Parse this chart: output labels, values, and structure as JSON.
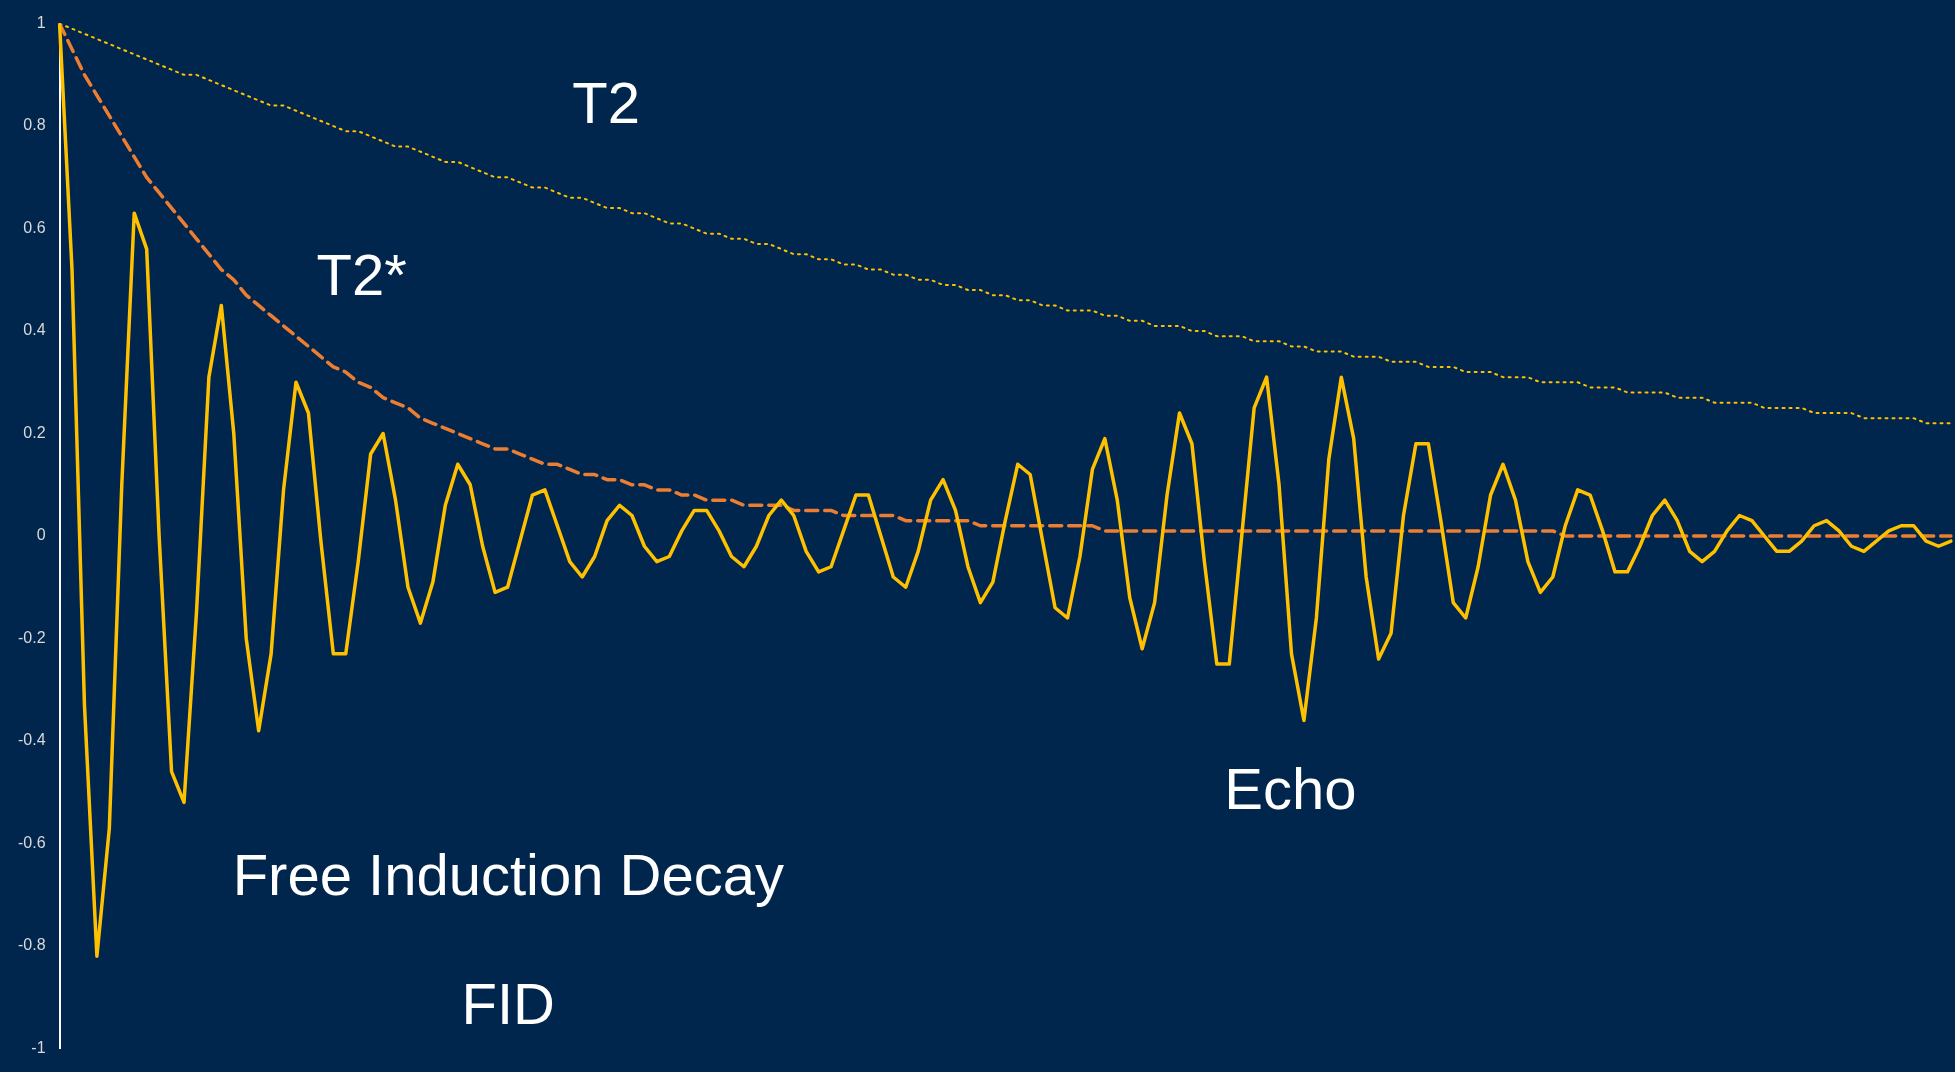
{
  "chart_data": {
    "type": "line",
    "categories": [
      null,
      null,
      null,
      null,
      null,
      null,
      null,
      null,
      null,
      null,
      null,
      null,
      null,
      null,
      null,
      null,
      null,
      null,
      null,
      null,
      null,
      null,
      null,
      null,
      null,
      null,
      null,
      null,
      null,
      null,
      null,
      null,
      null,
      null,
      null,
      null,
      null,
      null,
      null,
      null,
      null,
      null,
      null,
      null,
      null,
      null,
      null,
      null,
      null,
      null,
      null,
      null,
      null,
      null,
      null,
      null,
      null,
      null,
      null,
      null,
      null,
      null,
      null,
      null,
      null,
      null,
      null,
      null,
      null,
      null,
      null,
      null,
      null,
      null,
      null,
      null,
      null,
      null,
      null,
      null,
      null,
      null,
      null,
      null,
      null,
      null,
      null,
      null,
      null,
      null,
      null,
      null,
      null,
      null,
      null,
      null,
      null,
      null,
      null,
      null,
      null,
      null,
      null,
      null,
      null,
      null,
      null,
      null,
      null,
      null,
      null,
      null,
      null,
      null,
      null,
      null,
      null,
      null,
      null,
      null,
      null,
      null,
      null,
      null,
      null,
      null,
      null,
      null,
      null,
      null,
      null,
      null,
      null,
      null,
      null,
      null,
      null,
      null,
      null,
      null,
      null,
      null,
      null,
      null,
      null,
      null,
      null,
      null,
      null,
      null,
      null,
      null,
      null
    ],
    "ylim": [
      -1,
      1
    ],
    "yticks": [
      -1,
      -0.8,
      -0.6,
      -0.4,
      -0.2,
      0,
      0.2,
      0.4,
      0.6,
      0.8,
      1
    ],
    "grid": false,
    "legend": false,
    "marker": "none",
    "tick_labels": "y",
    "annotations": [
      "T2",
      "T2*",
      "Free Induction Decay",
      "FID",
      "Echo"
    ],
    "series": [
      {
        "color": "#ffc000",
        "line_style": "solid",
        "values": [
          1,
          0.52,
          -0.33,
          -0.82,
          -0.57,
          0.1,
          0.63,
          0.56,
          0,
          -0.46,
          -0.52,
          -0.15,
          0.31,
          0.45,
          0.2,
          -0.2,
          -0.38,
          -0.23,
          0.09,
          0.3,
          0.24,
          -0.01,
          -0.23,
          -0.23,
          -0.05,
          0.16,
          0.2,
          0.07,
          -0.1,
          -0.17,
          -0.09,
          0.06,
          0.14,
          0.1,
          -0.02,
          -0.11,
          -0.1,
          -0.01,
          0.08,
          0.09,
          0.02,
          -0.05,
          -0.08,
          -0.04,
          0.03,
          0.06,
          0.04,
          -0.02,
          -0.05,
          -0.04,
          0.01,
          0.05,
          0.05,
          0.01,
          -0.04,
          -0.06,
          -0.02,
          0.04,
          0.07,
          0.04,
          -0.03,
          -0.07,
          -0.06,
          0.01,
          0.08,
          0.08,
          0,
          -0.08,
          -0.1,
          -0.03,
          0.07,
          0.11,
          0.05,
          -0.06,
          -0.13,
          -0.09,
          0.03,
          0.14,
          0.12,
          -0.01,
          -0.14,
          -0.16,
          -0.04,
          0.13,
          0.19,
          0.07,
          -0.12,
          -0.22,
          -0.13,
          0.08,
          0.24,
          0.18,
          -0.05,
          -0.25,
          -0.25,
          0,
          0.25,
          0.31,
          0.1,
          -0.23,
          -0.36,
          -0.16,
          0.15,
          0.31,
          0.19,
          -0.08,
          -0.24,
          -0.19,
          0.04,
          0.18,
          0.18,
          0.03,
          -0.13,
          -0.16,
          -0.06,
          0.08,
          0.14,
          0.07,
          -0.05,
          -0.11,
          -0.08,
          0.02,
          0.09,
          0.08,
          0.01,
          -0.07,
          -0.07,
          -0.02,
          0.04,
          0.07,
          0.03,
          -0.03,
          -0.05,
          -0.03,
          0.01,
          0.04,
          0.03,
          0,
          -0.03,
          -0.03,
          -0.01,
          0.02,
          0.03,
          0.01,
          -0.02,
          -0.03,
          -0.01,
          0.01,
          0.02,
          0.02,
          -0.01,
          -0.02,
          -0.01
        ]
      },
      {
        "color": "#ed7d31",
        "line_style": "dashed",
        "values": [
          1,
          0.95,
          0.9,
          0.86,
          0.82,
          0.78,
          0.74,
          0.7,
          0.67,
          0.64,
          0.61,
          0.58,
          0.55,
          0.52,
          0.5,
          0.47,
          0.45,
          0.43,
          0.41,
          0.39,
          0.37,
          0.35,
          0.33,
          0.32,
          0.3,
          0.29,
          0.27,
          0.26,
          0.25,
          0.23,
          0.22,
          0.21,
          0.2,
          0.19,
          0.18,
          0.17,
          0.17,
          0.16,
          0.15,
          0.14,
          0.14,
          0.13,
          0.12,
          0.12,
          0.11,
          0.11,
          0.1,
          0.1,
          0.09,
          0.09,
          0.08,
          0.08,
          0.07,
          0.07,
          0.07,
          0.06,
          0.06,
          0.06,
          0.06,
          0.05,
          0.05,
          0.05,
          0.05,
          0.04,
          0.04,
          0.04,
          0.04,
          0.04,
          0.03,
          0.03,
          0.03,
          0.03,
          0.03,
          0.03,
          0.02,
          0.02,
          0.02,
          0.02,
          0.02,
          0.02,
          0.02,
          0.02,
          0.02,
          0.02,
          0.01,
          0.01,
          0.01,
          0.01,
          0.01,
          0.01,
          0.01,
          0.01,
          0.01,
          0.01,
          0.01,
          0.01,
          0.01,
          0.01,
          0.01,
          0.01,
          0.01,
          0.01,
          0.01,
          0.01,
          0.01,
          0.01,
          0.01,
          0.01,
          0.01,
          0.01,
          0.01,
          0.01,
          0.01,
          0.01,
          0.01,
          0.01,
          0.01,
          0.01,
          0.01,
          0.01,
          0.01,
          0,
          0,
          0,
          0,
          0,
          0,
          0,
          0,
          0,
          0,
          0,
          0,
          0,
          0,
          0,
          0,
          0,
          0,
          0,
          0,
          0,
          0,
          0,
          0,
          0,
          0,
          0,
          0,
          0,
          0,
          0,
          0
        ]
      },
      {
        "color": "#ffc000",
        "line_style": "dotted",
        "values": [
          1,
          0.99,
          0.98,
          0.97,
          0.96,
          0.95,
          0.94,
          0.93,
          0.92,
          0.91,
          0.9,
          0.9,
          0.89,
          0.88,
          0.87,
          0.86,
          0.85,
          0.84,
          0.84,
          0.83,
          0.82,
          0.81,
          0.8,
          0.79,
          0.79,
          0.78,
          0.77,
          0.76,
          0.76,
          0.75,
          0.74,
          0.73,
          0.73,
          0.72,
          0.71,
          0.7,
          0.7,
          0.69,
          0.68,
          0.68,
          0.67,
          0.66,
          0.66,
          0.65,
          0.64,
          0.64,
          0.63,
          0.63,
          0.62,
          0.61,
          0.61,
          0.6,
          0.59,
          0.59,
          0.58,
          0.58,
          0.57,
          0.57,
          0.56,
          0.55,
          0.55,
          0.54,
          0.54,
          0.53,
          0.53,
          0.52,
          0.52,
          0.51,
          0.51,
          0.5,
          0.5,
          0.49,
          0.49,
          0.48,
          0.48,
          0.47,
          0.47,
          0.46,
          0.46,
          0.45,
          0.45,
          0.44,
          0.44,
          0.44,
          0.43,
          0.43,
          0.42,
          0.42,
          0.41,
          0.41,
          0.41,
          0.4,
          0.4,
          0.39,
          0.39,
          0.39,
          0.38,
          0.38,
          0.38,
          0.37,
          0.37,
          0.36,
          0.36,
          0.36,
          0.35,
          0.35,
          0.35,
          0.34,
          0.34,
          0.34,
          0.33,
          0.33,
          0.33,
          0.32,
          0.32,
          0.32,
          0.31,
          0.31,
          0.31,
          0.3,
          0.3,
          0.3,
          0.3,
          0.29,
          0.29,
          0.29,
          0.28,
          0.28,
          0.28,
          0.28,
          0.27,
          0.27,
          0.27,
          0.26,
          0.26,
          0.26,
          0.26,
          0.25,
          0.25,
          0.25,
          0.25,
          0.24,
          0.24,
          0.24,
          0.24,
          0.23,
          0.23,
          0.23,
          0.23,
          0.23,
          0.22,
          0.22,
          0.22
        ]
      }
    ]
  }
}
